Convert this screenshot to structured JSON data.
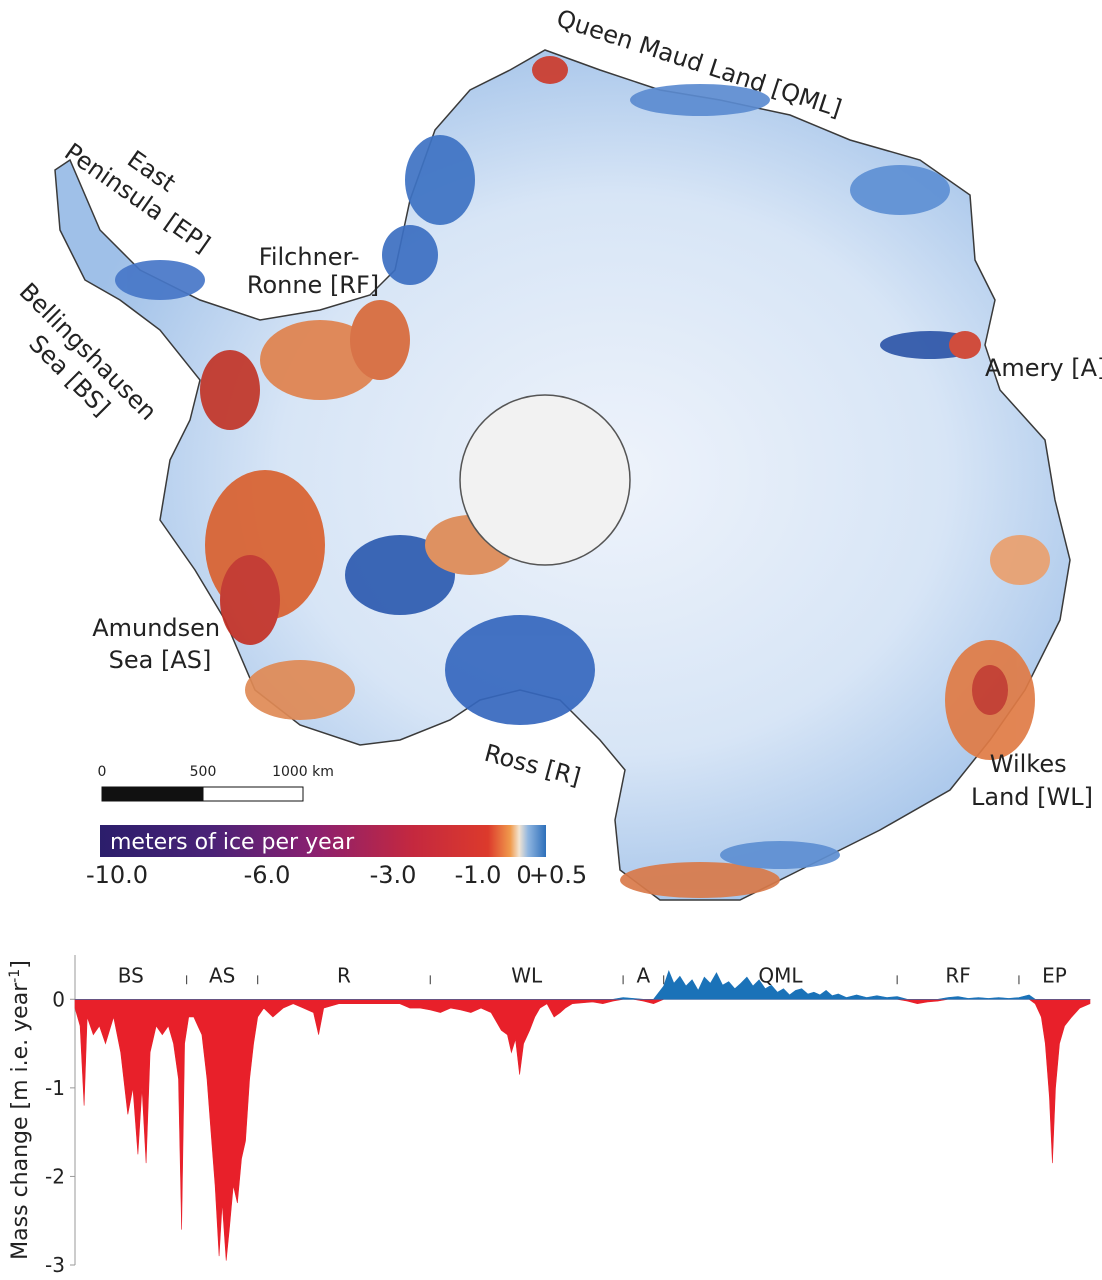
{
  "map": {
    "region_labels": [
      {
        "id": "qml",
        "lines": [
          "Queen Maud Land [QML]"
        ]
      },
      {
        "id": "ep",
        "lines": [
          "East",
          "Peninsula [EP]"
        ]
      },
      {
        "id": "rf",
        "lines": [
          "Filchner-",
          "Ronne [RF]"
        ]
      },
      {
        "id": "bs",
        "lines": [
          "Bellingshausen",
          "Sea [BS]"
        ]
      },
      {
        "id": "amery",
        "lines": [
          "Amery [A]"
        ]
      },
      {
        "id": "as",
        "lines": [
          "Amundsen",
          "Sea [AS]"
        ]
      },
      {
        "id": "ross",
        "lines": [
          "Ross [R]"
        ]
      },
      {
        "id": "wl",
        "lines": [
          "Wilkes",
          "Land [WL]"
        ]
      }
    ],
    "scale_bar": {
      "ticks": [
        "0",
        "500",
        "1000 km"
      ]
    },
    "colorbar": {
      "title": "meters of ice per year",
      "ticks": [
        "-10.0",
        "-6.0",
        "-3.0",
        "-1.0",
        "0",
        "+0.5"
      ],
      "colors": [
        "#2b1e6b",
        "#5b1f7a",
        "#a01f6e",
        "#d62f2f",
        "#f08a3c",
        "#e8f0f8",
        "#3d78c4"
      ]
    }
  },
  "chart_data": {
    "type": "area",
    "ylabel": "Mass change [m i.e. year",
    "ylabel_sup": "-1",
    "ylabel_end": "]",
    "yticks": [
      0,
      -1,
      -2,
      -3
    ],
    "ylim": [
      -3,
      0.5
    ],
    "x_range": [
      0,
      100
    ],
    "sectors": [
      {
        "name": "BS",
        "start": 0,
        "end": 11
      },
      {
        "name": "AS",
        "start": 11,
        "end": 18
      },
      {
        "name": "R",
        "start": 18,
        "end": 35
      },
      {
        "name": "WL",
        "start": 35,
        "end": 54
      },
      {
        "name": "A",
        "start": 54,
        "end": 58
      },
      {
        "name": "QML",
        "start": 58,
        "end": 81
      },
      {
        "name": "RF",
        "start": 81,
        "end": 93
      },
      {
        "name": "EP",
        "start": 93,
        "end": 100
      }
    ],
    "positive_color": "#1a72b8",
    "negative_color": "#e8202a",
    "series": [
      {
        "values": [
          [
            0,
            -0.1
          ],
          [
            0.5,
            -0.3
          ],
          [
            0.9,
            -1.2
          ],
          [
            1.2,
            -0.2
          ],
          [
            1.8,
            -0.4
          ],
          [
            2.4,
            -0.3
          ],
          [
            3,
            -0.5
          ],
          [
            3.8,
            -0.2
          ],
          [
            4.5,
            -0.6
          ],
          [
            5.2,
            -1.3
          ],
          [
            5.7,
            -1.0
          ],
          [
            6.2,
            -1.75
          ],
          [
            6.6,
            -1.0
          ],
          [
            7,
            -1.85
          ],
          [
            7.4,
            -0.6
          ],
          [
            8,
            -0.3
          ],
          [
            8.6,
            -0.4
          ],
          [
            9.2,
            -0.3
          ],
          [
            9.7,
            -0.5
          ],
          [
            10.2,
            -0.9
          ],
          [
            10.5,
            -2.6
          ],
          [
            10.8,
            -0.5
          ],
          [
            11.2,
            -0.2
          ],
          [
            11.7,
            -0.2
          ],
          [
            12.1,
            -0.3
          ],
          [
            12.5,
            -0.4
          ],
          [
            13.0,
            -0.9
          ],
          [
            13.4,
            -1.5
          ],
          [
            13.8,
            -2.1
          ],
          [
            14.2,
            -2.9
          ],
          [
            14.5,
            -2.3
          ],
          [
            14.9,
            -2.95
          ],
          [
            15.2,
            -2.6
          ],
          [
            15.6,
            -2.1
          ],
          [
            16.0,
            -2.3
          ],
          [
            16.4,
            -1.8
          ],
          [
            16.8,
            -1.6
          ],
          [
            17.2,
            -0.9
          ],
          [
            17.6,
            -0.5
          ],
          [
            18.0,
            -0.2
          ],
          [
            18.6,
            -0.1
          ],
          [
            19.5,
            -0.2
          ],
          [
            20.5,
            -0.1
          ],
          [
            21.5,
            -0.05
          ],
          [
            22.5,
            -0.1
          ],
          [
            23.5,
            -0.15
          ],
          [
            24.0,
            -0.4
          ],
          [
            24.5,
            -0.1
          ],
          [
            26,
            -0.05
          ],
          [
            28,
            -0.05
          ],
          [
            30,
            -0.05
          ],
          [
            32,
            -0.05
          ],
          [
            33,
            -0.1
          ],
          [
            34,
            -0.1
          ],
          [
            35,
            -0.12
          ],
          [
            36,
            -0.15
          ],
          [
            37,
            -0.1
          ],
          [
            38,
            -0.12
          ],
          [
            39,
            -0.15
          ],
          [
            40,
            -0.1
          ],
          [
            41,
            -0.15
          ],
          [
            42,
            -0.35
          ],
          [
            42.6,
            -0.4
          ],
          [
            43.0,
            -0.6
          ],
          [
            43.4,
            -0.45
          ],
          [
            43.8,
            -0.85
          ],
          [
            44.2,
            -0.5
          ],
          [
            44.8,
            -0.35
          ],
          [
            45.3,
            -0.2
          ],
          [
            45.8,
            -0.1
          ],
          [
            46.5,
            -0.05
          ],
          [
            47.2,
            -0.2
          ],
          [
            47.8,
            -0.15
          ],
          [
            48.3,
            -0.1
          ],
          [
            49,
            -0.05
          ],
          [
            51,
            -0.03
          ],
          [
            52,
            -0.05
          ],
          [
            53,
            -0.02
          ],
          [
            54,
            0.02
          ],
          [
            55,
            0.01
          ],
          [
            56,
            -0.02
          ],
          [
            57,
            -0.05
          ],
          [
            58,
            0.15
          ],
          [
            58.5,
            0.32
          ],
          [
            59,
            0.18
          ],
          [
            59.6,
            0.26
          ],
          [
            60.2,
            0.15
          ],
          [
            60.8,
            0.22
          ],
          [
            61.4,
            0.1
          ],
          [
            62,
            0.25
          ],
          [
            62.6,
            0.18
          ],
          [
            63.2,
            0.3
          ],
          [
            63.8,
            0.16
          ],
          [
            64.4,
            0.2
          ],
          [
            65,
            0.12
          ],
          [
            65.6,
            0.18
          ],
          [
            66.2,
            0.25
          ],
          [
            66.8,
            0.15
          ],
          [
            67.4,
            0.22
          ],
          [
            68,
            0.12
          ],
          [
            68.6,
            0.16
          ],
          [
            69.2,
            0.08
          ],
          [
            69.8,
            0.12
          ],
          [
            70.4,
            0.05
          ],
          [
            71,
            0.1
          ],
          [
            71.6,
            0.12
          ],
          [
            72.2,
            0.06
          ],
          [
            72.8,
            0.08
          ],
          [
            73.4,
            0.05
          ],
          [
            74,
            0.1
          ],
          [
            74.6,
            0.04
          ],
          [
            75.2,
            0.06
          ],
          [
            76,
            0.02
          ],
          [
            77,
            0.05
          ],
          [
            78,
            0.02
          ],
          [
            79,
            0.04
          ],
          [
            80,
            0.02
          ],
          [
            81,
            0.03
          ],
          [
            82,
            -0.02
          ],
          [
            83,
            -0.05
          ],
          [
            84,
            -0.03
          ],
          [
            85,
            -0.02
          ],
          [
            86,
            0.02
          ],
          [
            87,
            0.03
          ],
          [
            88,
            0.01
          ],
          [
            89,
            0.02
          ],
          [
            90,
            0.01
          ],
          [
            91,
            0.02
          ],
          [
            92,
            0.01
          ],
          [
            93,
            0.02
          ],
          [
            94,
            0.05
          ],
          [
            94.6,
            -0.05
          ],
          [
            95.2,
            -0.2
          ],
          [
            95.6,
            -0.5
          ],
          [
            96.0,
            -1.1
          ],
          [
            96.3,
            -1.85
          ],
          [
            96.6,
            -1.0
          ],
          [
            97.0,
            -0.5
          ],
          [
            97.5,
            -0.3
          ],
          [
            98.2,
            -0.2
          ],
          [
            99,
            -0.1
          ],
          [
            100,
            -0.05
          ]
        ]
      }
    ]
  }
}
